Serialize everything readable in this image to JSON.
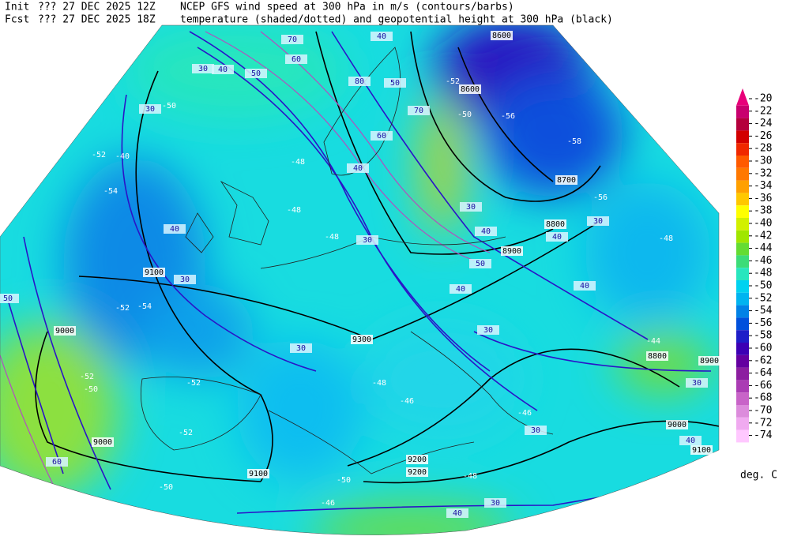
{
  "header": {
    "line1": {
      "kind": "Init",
      "time": "??? 27 DEC 2025 12Z",
      "title": "NCEP GFS wind speed at 300 hPa in m/s (contours/barbs)"
    },
    "line2": {
      "kind": "Fcst",
      "time": "??? 27 DEC 2025 18Z",
      "title": "temperature (shaded/dotted) and geopotential height at 300 hPa (black)"
    }
  },
  "colorbar": {
    "unit": "deg. C",
    "levels": [
      {
        "label": "-20",
        "color": "#e8007a"
      },
      {
        "label": "-22",
        "color": "#c8006e"
      },
      {
        "label": "-24",
        "color": "#b4003c"
      },
      {
        "label": "-26",
        "color": "#d20000"
      },
      {
        "label": "-28",
        "color": "#f02800"
      },
      {
        "label": "-30",
        "color": "#ff5a00"
      },
      {
        "label": "-32",
        "color": "#ff7800"
      },
      {
        "label": "-34",
        "color": "#ffa000"
      },
      {
        "label": "-36",
        "color": "#ffc800"
      },
      {
        "label": "-38",
        "color": "#ffff00"
      },
      {
        "label": "-40",
        "color": "#d2f000"
      },
      {
        "label": "-42",
        "color": "#a0e600"
      },
      {
        "label": "-44",
        "color": "#64dc32"
      },
      {
        "label": "-46",
        "color": "#3cdc78"
      },
      {
        "label": "-48",
        "color": "#28e6be"
      },
      {
        "label": "-50",
        "color": "#00d2f0"
      },
      {
        "label": "-52",
        "color": "#00b4f0"
      },
      {
        "label": "-54",
        "color": "#0082e6"
      },
      {
        "label": "-56",
        "color": "#0050dc"
      },
      {
        "label": "-58",
        "color": "#1e1ec8"
      },
      {
        "label": "-60",
        "color": "#3c00b4"
      },
      {
        "label": "-62",
        "color": "#6400a0"
      },
      {
        "label": "-64",
        "color": "#8c1ea0"
      },
      {
        "label": "-66",
        "color": "#aa3cb4"
      },
      {
        "label": "-68",
        "color": "#c864c8"
      },
      {
        "label": "-70",
        "color": "#dc8cdc"
      },
      {
        "label": "-72",
        "color": "#f0aaf0"
      },
      {
        "label": "-74",
        "color": "#ffc8ff"
      }
    ]
  },
  "map_labels": {
    "height": [
      "8600",
      "8600",
      "8700",
      "8800",
      "8900",
      "9100",
      "9000",
      "9300",
      "9200",
      "9200",
      "9100",
      "9000",
      "8800",
      "9000",
      "8900",
      "9100"
    ],
    "wind": [
      "30",
      "40",
      "50",
      "60",
      "70",
      "40",
      "50",
      "60",
      "70",
      "80",
      "30",
      "40",
      "30",
      "40",
      "30",
      "40",
      "30",
      "50",
      "40",
      "40",
      "30",
      "30",
      "30",
      "40",
      "50",
      "60",
      "30",
      "40",
      "30",
      "40",
      "30"
    ],
    "temperature": [
      "-50",
      "-52",
      "-40",
      "-54",
      "-48",
      "-48",
      "-48",
      "-52",
      "-54",
      "-52",
      "-50",
      "-52",
      "-52",
      "-48",
      "-46",
      "-48",
      "-46",
      "-50",
      "-50",
      "-46",
      "-44",
      "-48",
      "-56",
      "-58",
      "-56",
      "-50",
      "-52"
    ]
  }
}
